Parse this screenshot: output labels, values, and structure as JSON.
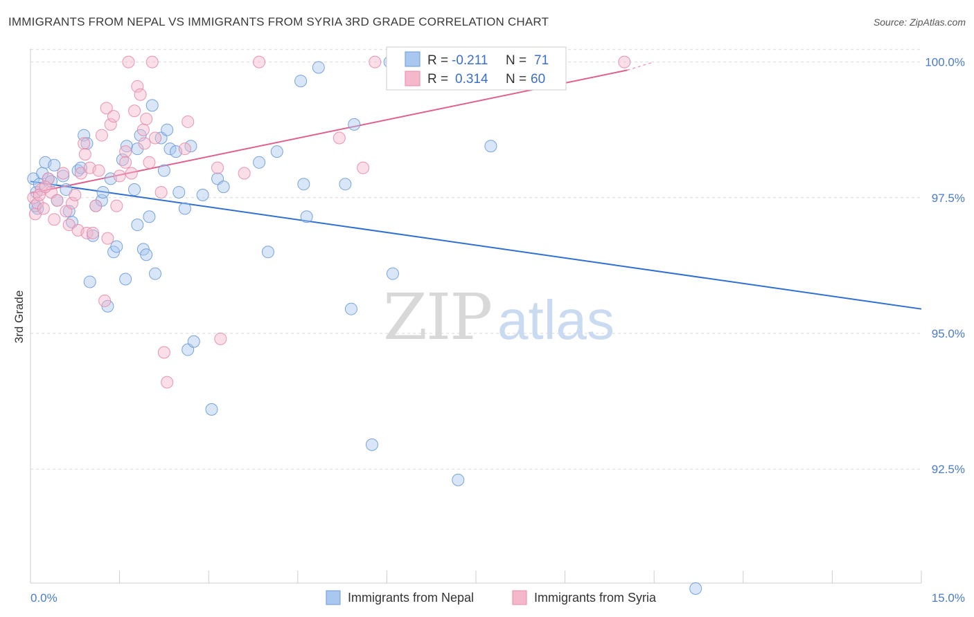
{
  "header": {
    "title": "IMMIGRANTS FROM NEPAL VS IMMIGRANTS FROM SYRIA 3RD GRADE CORRELATION CHART",
    "source": "Source: ZipAtlas.com"
  },
  "watermark": {
    "zip": "ZIP",
    "atlas": "atlas"
  },
  "colors": {
    "nepal_fill": "#a9c8f0",
    "nepal_stroke": "#6a9ad8",
    "nepal_line": "#2f6fd0",
    "syria_fill": "#f5b8cb",
    "syria_stroke": "#e58aa8",
    "syria_line": "#e0608a",
    "tick": "#4a7bc8",
    "grid": "#d9d9d9"
  },
  "legend": {
    "rows": [
      {
        "r_label": "R =",
        "r_value": "-0.211",
        "n_label": "N =",
        "n_value": "71"
      },
      {
        "r_label": "R =",
        "r_value": "0.314",
        "n_label": "N =",
        "n_value": "60"
      }
    ]
  },
  "chart_data": {
    "type": "scatter",
    "title": "IMMIGRANTS FROM NEPAL VS IMMIGRANTS FROM SYRIA 3RD GRADE CORRELATION CHART",
    "xlabel": "",
    "ylabel": "3rd Grade",
    "xlim": [
      0,
      15
    ],
    "ylim": [
      90.4,
      100.25
    ],
    "x_tick_labels": [
      "0.0%",
      "15.0%"
    ],
    "y_ticks": [
      92.5,
      95.0,
      97.5,
      100.0
    ],
    "y_tick_labels": [
      "92.5%",
      "95.0%",
      "97.5%",
      "100.0%"
    ],
    "grid": true,
    "legend_placement": "top-center",
    "series": [
      {
        "name": "Immigrants from Nepal",
        "trend": {
          "x": [
            0,
            15
          ],
          "y": [
            97.8,
            95.45
          ]
        },
        "points": [
          [
            0.05,
            97.85
          ],
          [
            0.1,
            97.6
          ],
          [
            0.12,
            97.3
          ],
          [
            0.15,
            97.75
          ],
          [
            0.2,
            97.95
          ],
          [
            0.25,
            98.15
          ],
          [
            0.3,
            97.85
          ],
          [
            0.35,
            97.8
          ],
          [
            0.4,
            98.1
          ],
          [
            0.45,
            97.45
          ],
          [
            0.55,
            97.9
          ],
          [
            0.6,
            97.65
          ],
          [
            0.65,
            97.25
          ],
          [
            0.7,
            97.05
          ],
          [
            0.8,
            98.0
          ],
          [
            0.85,
            98.05
          ],
          [
            0.9,
            98.65
          ],
          [
            0.95,
            98.5
          ],
          [
            1.0,
            95.95
          ],
          [
            1.05,
            96.8
          ],
          [
            1.1,
            97.35
          ],
          [
            1.2,
            97.45
          ],
          [
            1.22,
            97.6
          ],
          [
            1.3,
            95.5
          ],
          [
            1.35,
            97.85
          ],
          [
            1.4,
            96.5
          ],
          [
            1.45,
            96.6
          ],
          [
            1.55,
            98.2
          ],
          [
            1.6,
            96.0
          ],
          [
            1.62,
            98.45
          ],
          [
            1.75,
            97.65
          ],
          [
            1.8,
            98.4
          ],
          [
            1.8,
            97.0
          ],
          [
            1.85,
            98.65
          ],
          [
            1.9,
            96.55
          ],
          [
            1.95,
            96.45
          ],
          [
            2.0,
            97.15
          ],
          [
            2.05,
            99.2
          ],
          [
            2.1,
            96.1
          ],
          [
            2.2,
            98.6
          ],
          [
            2.25,
            98.0
          ],
          [
            2.3,
            98.75
          ],
          [
            2.35,
            98.4
          ],
          [
            2.45,
            98.35
          ],
          [
            2.5,
            97.6
          ],
          [
            2.6,
            97.3
          ],
          [
            2.65,
            94.7
          ],
          [
            2.7,
            98.45
          ],
          [
            2.75,
            94.85
          ],
          [
            2.9,
            97.55
          ],
          [
            3.05,
            93.6
          ],
          [
            3.15,
            97.85
          ],
          [
            3.25,
            97.7
          ],
          [
            3.85,
            98.15
          ],
          [
            4.0,
            96.5
          ],
          [
            4.15,
            98.35
          ],
          [
            4.55,
            99.65
          ],
          [
            4.6,
            97.75
          ],
          [
            4.65,
            97.15
          ],
          [
            4.85,
            99.9
          ],
          [
            5.3,
            97.75
          ],
          [
            5.4,
            95.45
          ],
          [
            5.45,
            98.85
          ],
          [
            5.75,
            92.95
          ],
          [
            6.05,
            100.0
          ],
          [
            6.1,
            96.1
          ],
          [
            6.55,
            100.0
          ],
          [
            7.2,
            92.3
          ],
          [
            7.75,
            98.45
          ],
          [
            11.2,
            90.3
          ],
          [
            0.08,
            97.35
          ]
        ]
      },
      {
        "name": "Immigrants from Syria",
        "trend": {
          "x": [
            0,
            10.05
          ],
          "y": [
            97.58,
            99.85
          ]
        },
        "trend_dashed": {
          "x": [
            10.05,
            10.5
          ],
          "y": [
            99.85,
            100.0
          ]
        },
        "points": [
          [
            0.05,
            97.5
          ],
          [
            0.08,
            97.2
          ],
          [
            0.12,
            97.4
          ],
          [
            0.18,
            97.65
          ],
          [
            0.22,
            97.3
          ],
          [
            0.3,
            97.85
          ],
          [
            0.35,
            97.6
          ],
          [
            0.4,
            97.1
          ],
          [
            0.45,
            97.45
          ],
          [
            0.55,
            97.95
          ],
          [
            0.6,
            97.25
          ],
          [
            0.65,
            97.0
          ],
          [
            0.7,
            97.4
          ],
          [
            0.75,
            97.55
          ],
          [
            0.8,
            96.9
          ],
          [
            0.85,
            97.95
          ],
          [
            0.9,
            98.5
          ],
          [
            0.92,
            98.3
          ],
          [
            0.95,
            96.85
          ],
          [
            1.0,
            98.05
          ],
          [
            1.05,
            96.85
          ],
          [
            1.1,
            97.35
          ],
          [
            1.15,
            98.0
          ],
          [
            1.2,
            98.65
          ],
          [
            1.25,
            95.6
          ],
          [
            1.28,
            99.15
          ],
          [
            1.3,
            96.75
          ],
          [
            1.35,
            98.85
          ],
          [
            1.4,
            99.0
          ],
          [
            1.45,
            97.35
          ],
          [
            1.5,
            97.9
          ],
          [
            1.6,
            98.35
          ],
          [
            1.6,
            98.15
          ],
          [
            1.65,
            100.0
          ],
          [
            1.7,
            97.95
          ],
          [
            1.75,
            99.1
          ],
          [
            1.8,
            99.55
          ],
          [
            1.85,
            99.4
          ],
          [
            1.9,
            98.75
          ],
          [
            1.92,
            98.5
          ],
          [
            1.95,
            98.95
          ],
          [
            2.0,
            98.15
          ],
          [
            2.05,
            100.0
          ],
          [
            2.1,
            98.6
          ],
          [
            2.2,
            97.6
          ],
          [
            2.25,
            94.65
          ],
          [
            2.3,
            94.1
          ],
          [
            2.6,
            98.4
          ],
          [
            2.65,
            98.9
          ],
          [
            3.15,
            98.05
          ],
          [
            3.2,
            94.9
          ],
          [
            3.6,
            97.95
          ],
          [
            3.85,
            100.0
          ],
          [
            5.2,
            98.6
          ],
          [
            5.6,
            98.05
          ],
          [
            5.8,
            100.0
          ],
          [
            6.1,
            99.7
          ],
          [
            10.0,
            100.0
          ],
          [
            0.15,
            97.55
          ],
          [
            0.25,
            97.7
          ]
        ]
      }
    ]
  },
  "bottom_legend": [
    {
      "label": "Immigrants from Nepal"
    },
    {
      "label": "Immigrants from Syria"
    }
  ]
}
